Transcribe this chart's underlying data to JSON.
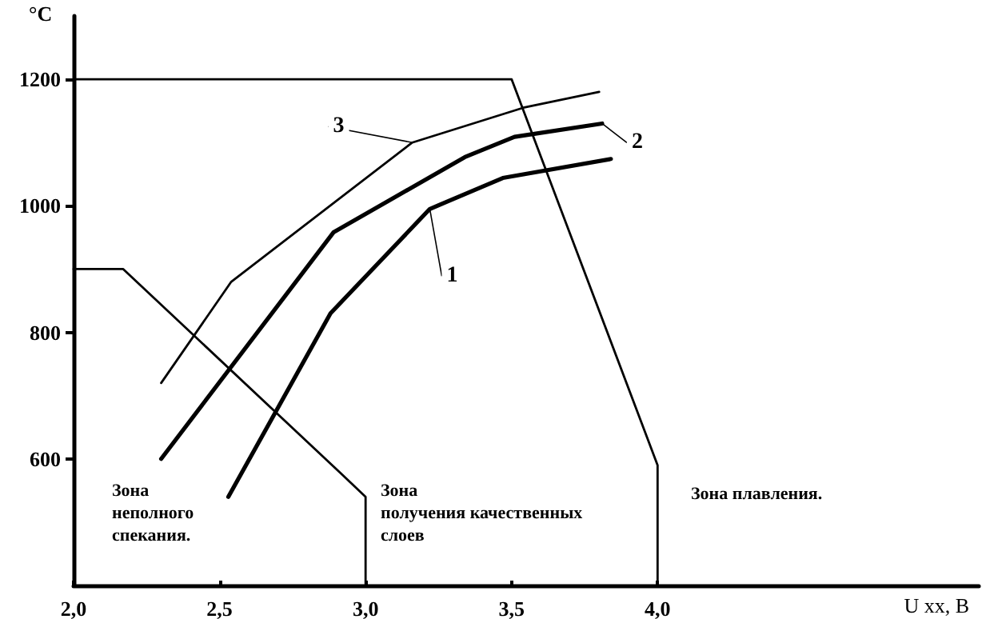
{
  "chart_data": {
    "type": "line",
    "xlabel": "U хх, В",
    "ylabel": "°С",
    "xlim": [
      2.0,
      5.1
    ],
    "ylim": [
      400,
      1300
    ],
    "xticks": [
      {
        "value": 2,
        "label": "2,0"
      },
      {
        "value": 2.5,
        "label": "2,5"
      },
      {
        "value": 3,
        "label": "3,0"
      },
      {
        "value": 3.5,
        "label": "3,5"
      },
      {
        "value": 4,
        "label": "4,0"
      }
    ],
    "yticks": [
      600,
      800,
      1000,
      1200
    ],
    "marker": "none",
    "line_style": "solid",
    "series": [
      {
        "name": "1",
        "color": "#000000",
        "x": [
          2.53,
          2.88,
          3.22,
          3.47,
          3.84
        ],
        "values": [
          540,
          830,
          995,
          1044,
          1074
        ]
      },
      {
        "name": "2",
        "color": "#000000",
        "x": [
          2.3,
          2.89,
          3.34,
          3.51,
          3.81
        ],
        "values": [
          600,
          958,
          1077,
          1109,
          1130
        ]
      },
      {
        "name": "3",
        "color": "#000000",
        "x": [
          2.3,
          2.54,
          3.16,
          3.54,
          3.8
        ],
        "values": [
          720,
          880,
          1100,
          1155,
          1180
        ]
      },
      {
        "color": "#000000",
        "x": [
          2.0,
          3.5,
          4.0,
          4.0
        ],
        "values": [
          1200,
          1200,
          590,
          400
        ]
      },
      {
        "color": "#000000",
        "x": [
          2.0,
          2.17,
          2.92,
          3.0,
          3.0
        ],
        "values": [
          900,
          900,
          575,
          540,
          400
        ]
      }
    ],
    "annotations": [
      "Зона\nнеполного\nспекания.",
      "Зона\nполучения качественных\nслоев",
      "Зона плавления."
    ]
  }
}
